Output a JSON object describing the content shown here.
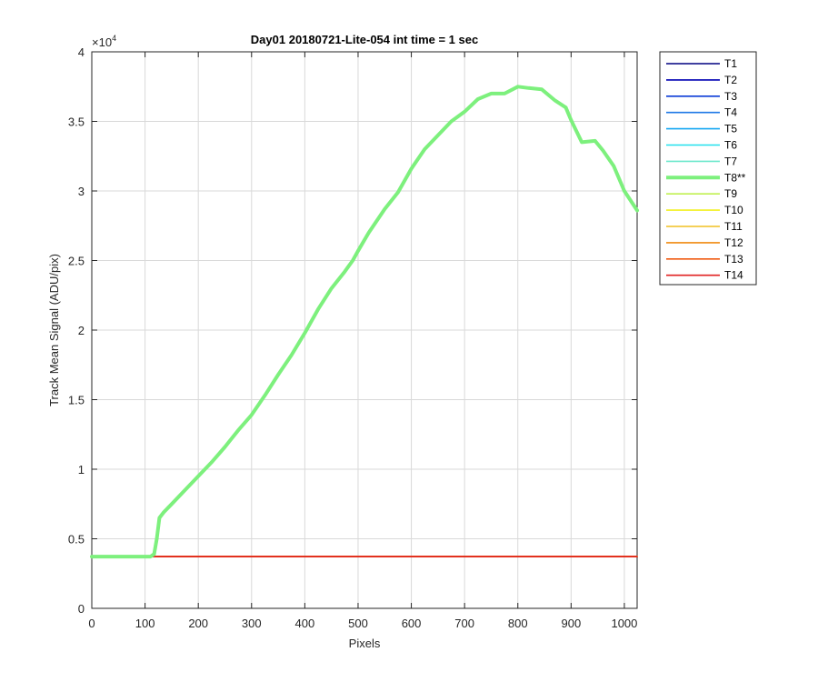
{
  "chart_data": {
    "type": "line",
    "title": "Day01 20180721-Lite-054 int time = 1 sec",
    "xlabel": "Pixels",
    "ylabel": "Track Mean Signal (ADU/pix)",
    "exponent_label": "×10",
    "exponent_power": "4",
    "xlim": [
      0,
      1024
    ],
    "ylim": [
      0,
      40000
    ],
    "x_ticks": [
      0,
      100,
      200,
      300,
      400,
      500,
      600,
      700,
      800,
      900,
      1000
    ],
    "x_tick_labels": [
      "0",
      "100",
      "200",
      "300",
      "400",
      "500",
      "600",
      "700",
      "800",
      "900",
      "1000"
    ],
    "y_ticks": [
      0,
      5000,
      10000,
      15000,
      20000,
      25000,
      30000,
      35000,
      40000
    ],
    "y_tick_labels": [
      "0",
      "0.5",
      "1",
      "1.5",
      "2",
      "2.5",
      "3",
      "3.5",
      "4"
    ],
    "grid": true,
    "legend_position": "outside-right-top",
    "series": [
      {
        "name": "T1",
        "color": "#000080",
        "flat_value": 3720
      },
      {
        "name": "T2",
        "color": "#0000b3",
        "flat_value": 3720
      },
      {
        "name": "T3",
        "color": "#0a3ad6",
        "flat_value": 3720
      },
      {
        "name": "T4",
        "color": "#1f78e6",
        "flat_value": 3720
      },
      {
        "name": "T5",
        "color": "#16a8f2",
        "flat_value": 3720
      },
      {
        "name": "T6",
        "color": "#22e0ee",
        "flat_value": 3720
      },
      {
        "name": "T7",
        "color": "#6ee8cc",
        "flat_value": 3720
      },
      {
        "name": "T8**",
        "color": "#7df07d",
        "highlight": true,
        "x": [
          0,
          110,
          117,
          122,
          127,
          135,
          150,
          175,
          200,
          225,
          250,
          275,
          300,
          325,
          350,
          375,
          400,
          425,
          450,
          475,
          490,
          500,
          520,
          550,
          575,
          600,
          625,
          650,
          675,
          700,
          725,
          750,
          775,
          800,
          820,
          845,
          870,
          890,
          900,
          920,
          945,
          960,
          980,
          1000,
          1024
        ],
        "y": [
          3720,
          3720,
          3900,
          5000,
          6500,
          6900,
          7500,
          8500,
          9500,
          10500,
          11600,
          12800,
          13900,
          15300,
          16800,
          18200,
          19800,
          21500,
          23000,
          24200,
          25000,
          25700,
          27000,
          28700,
          29900,
          31600,
          33000,
          34000,
          35000,
          35700,
          36600,
          37000,
          37000,
          37500,
          37400,
          37300,
          36500,
          36000,
          35100,
          33500,
          33600,
          32900,
          31800,
          30000,
          28600
        ]
      },
      {
        "name": "T9",
        "color": "#c0f050",
        "flat_value": 3720
      },
      {
        "name": "T10",
        "color": "#f2f020",
        "flat_value": 3720
      },
      {
        "name": "T11",
        "color": "#f0c020",
        "flat_value": 3720
      },
      {
        "name": "T12",
        "color": "#f08a10",
        "flat_value": 3720
      },
      {
        "name": "T13",
        "color": "#f05a10",
        "flat_value": 3720
      },
      {
        "name": "T14",
        "color": "#e02020",
        "flat_value": 3720
      }
    ]
  }
}
